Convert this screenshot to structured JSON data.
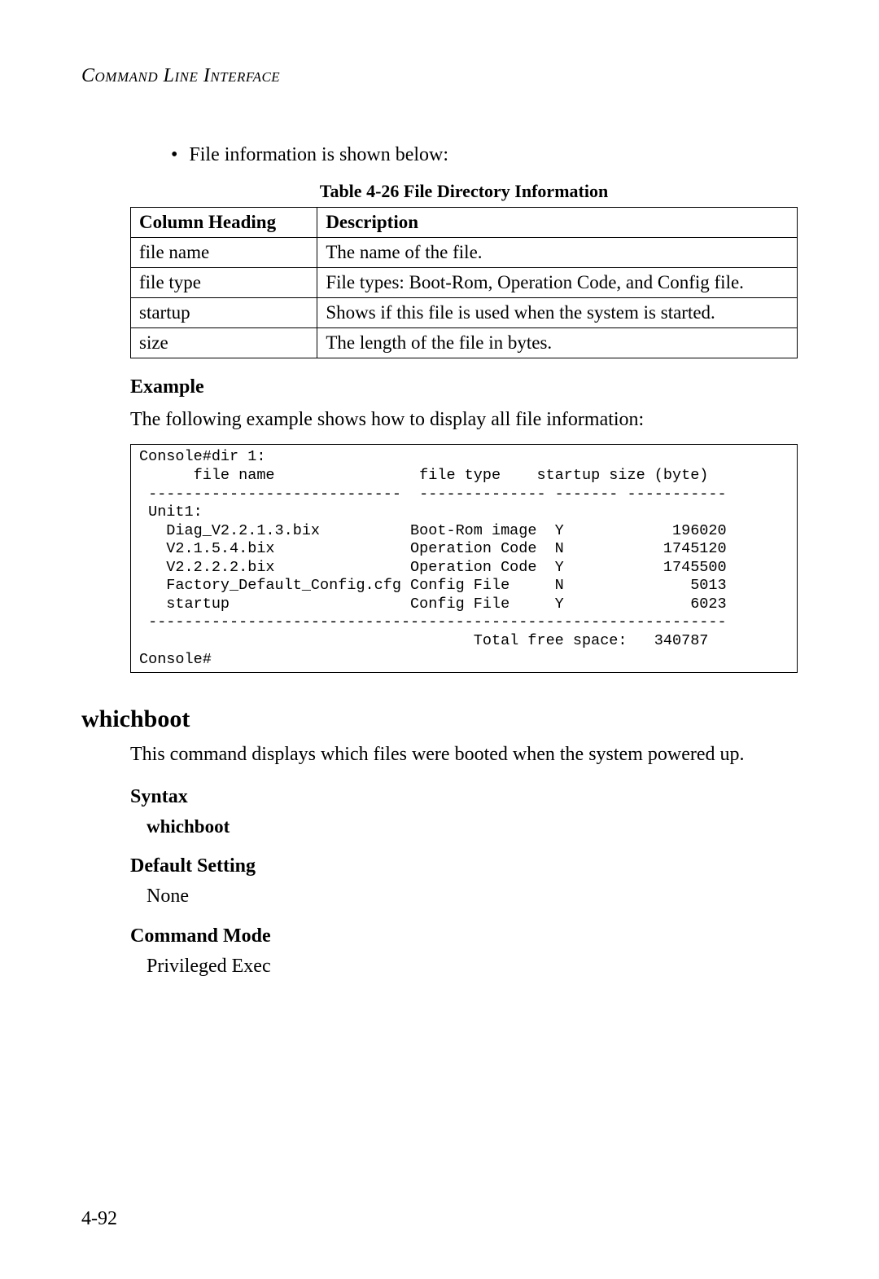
{
  "header": {
    "running": "Command Line Interface"
  },
  "bullet": {
    "text": "File information is shown below:"
  },
  "table": {
    "caption": "Table 4-26  File Directory Information",
    "col_heading_1": "Column Heading",
    "col_heading_2": "Description",
    "rows": [
      {
        "c1": "file name",
        "c2": "The name of the file."
      },
      {
        "c1": "file type",
        "c2": "File types: Boot-Rom, Operation Code, and Config file."
      },
      {
        "c1": "startup",
        "c2": "Shows if this file is used when the system is started."
      },
      {
        "c1": "size",
        "c2": "The length of the file in bytes."
      }
    ]
  },
  "example": {
    "heading": "Example",
    "intro": "The following example shows how to display all file information:",
    "console": "Console#dir 1:\n      file name                file type    startup size (byte)\n ----------------------------  -------------- ------- -----------\n Unit1:\n   Diag_V2.2.1.3.bix          Boot-Rom image  Y            196020\n   V2.1.5.4.bix               Operation Code  N           1745120\n   V2.2.2.2.bix               Operation Code  Y           1745500\n   Factory_Default_Config.cfg Config File     N              5013\n   startup                    Config File     Y              6023\n ----------------------------------------------------------------\n                                     Total free space:   340787\nConsole#"
  },
  "whichboot": {
    "heading": "whichboot",
    "desc": "This command displays which files were booted when the system powered up.",
    "syntax_label": "Syntax",
    "syntax_cmd": "whichboot",
    "default_label": "Default Setting",
    "default_value": "None",
    "mode_label": "Command Mode",
    "mode_value": "Privileged Exec"
  },
  "footer": {
    "page": "4-92"
  }
}
